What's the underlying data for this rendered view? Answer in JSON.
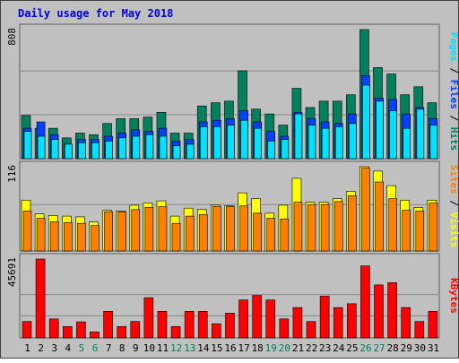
{
  "chart_data": {
    "type": "bar",
    "title": "Daily usage for May 2018",
    "categories": [
      "1",
      "2",
      "3",
      "4",
      "5",
      "6",
      "7",
      "8",
      "9",
      "10",
      "11",
      "12",
      "13",
      "14",
      "15",
      "16",
      "17",
      "18",
      "19",
      "20",
      "21",
      "22",
      "23",
      "24",
      "25",
      "26",
      "27",
      "28",
      "29",
      "30",
      "31"
    ],
    "weekend_days": [
      "5",
      "6",
      "12",
      "13",
      "19",
      "20",
      "26",
      "27"
    ],
    "panels": [
      {
        "ylabel": [
          "Pages",
          "Files",
          "Hits"
        ],
        "ytick": "808",
        "ylim": [
          0,
          808
        ],
        "series": [
          {
            "name": "Hits",
            "values": [
              270,
              190,
              190,
              130,
              160,
              150,
              220,
              250,
              250,
              260,
              290,
              160,
              160,
              330,
              350,
              360,
              550,
              310,
              280,
              210,
              440,
              320,
              360,
              360,
              400,
              808,
              570,
              530,
              400,
              450,
              350
            ]
          },
          {
            "name": "Files",
            "values": [
              190,
              230,
              150,
              90,
              120,
              120,
              140,
              160,
              180,
              170,
              190,
              110,
              120,
              230,
              240,
              250,
              300,
              230,
              170,
              140,
              290,
              250,
              230,
              220,
              280,
              520,
              380,
              370,
              280,
              320,
              250
            ]
          },
          {
            "name": "Pages",
            "values": [
              170,
              140,
              120,
              90,
              100,
              100,
              110,
              130,
              140,
              150,
              140,
              80,
              90,
              200,
              200,
              210,
              240,
              190,
              110,
              120,
              280,
              210,
              190,
              200,
              220,
              460,
              360,
              300,
              190,
              310,
              210
            ]
          }
        ]
      },
      {
        "ylabel": [
          "Sites",
          "Visits"
        ],
        "ytick": "116",
        "ylim": [
          0,
          116
        ],
        "series": [
          {
            "name": "Visits",
            "values": [
              70,
              51,
              49,
              48,
              47,
              40,
              56,
              55,
              63,
              66,
              69,
              48,
              59,
              57,
              63,
              62,
              80,
              72,
              52,
              63,
              100,
              67,
              67,
              72,
              82,
              116,
              110,
              90,
              70,
              60,
              70
            ]
          },
          {
            "name": "Sites",
            "values": [
              55,
              45,
              40,
              39,
              38,
              35,
              54,
              54,
              57,
              60,
              61,
              38,
              48,
              50,
              61,
              61,
              62,
              52,
              45,
              44,
              67,
              64,
              64,
              68,
              76,
              114,
              95,
              72,
              56,
              55,
              66
            ]
          }
        ]
      },
      {
        "ylabel": [
          "KBytes"
        ],
        "ytick": "45691",
        "ylim": [
          0,
          45691
        ],
        "series": [
          {
            "name": "KBytes",
            "values": [
              9500,
              45691,
              11000,
              6600,
              9300,
              3500,
              15400,
              6600,
              9500,
              23300,
              15400,
              6600,
              15400,
              15400,
              8200,
              14300,
              22000,
              24600,
              22000,
              11000,
              17600,
              9500,
              24200,
              17600,
              19800,
              41700,
              30700,
              32000,
              17600,
              9500,
              15400
            ]
          }
        ]
      }
    ]
  },
  "colors": {
    "background": "#c0c0c0",
    "border": "#404040",
    "title": "#0000cc",
    "hits": "#00805c",
    "files": "#0040ff",
    "pages": "#00e0ff",
    "visits": "#ffff00",
    "sites": "#ff8000",
    "kbytes": "#ff0000",
    "weekday_label": "#000000",
    "weekend_label": "#00805c"
  }
}
